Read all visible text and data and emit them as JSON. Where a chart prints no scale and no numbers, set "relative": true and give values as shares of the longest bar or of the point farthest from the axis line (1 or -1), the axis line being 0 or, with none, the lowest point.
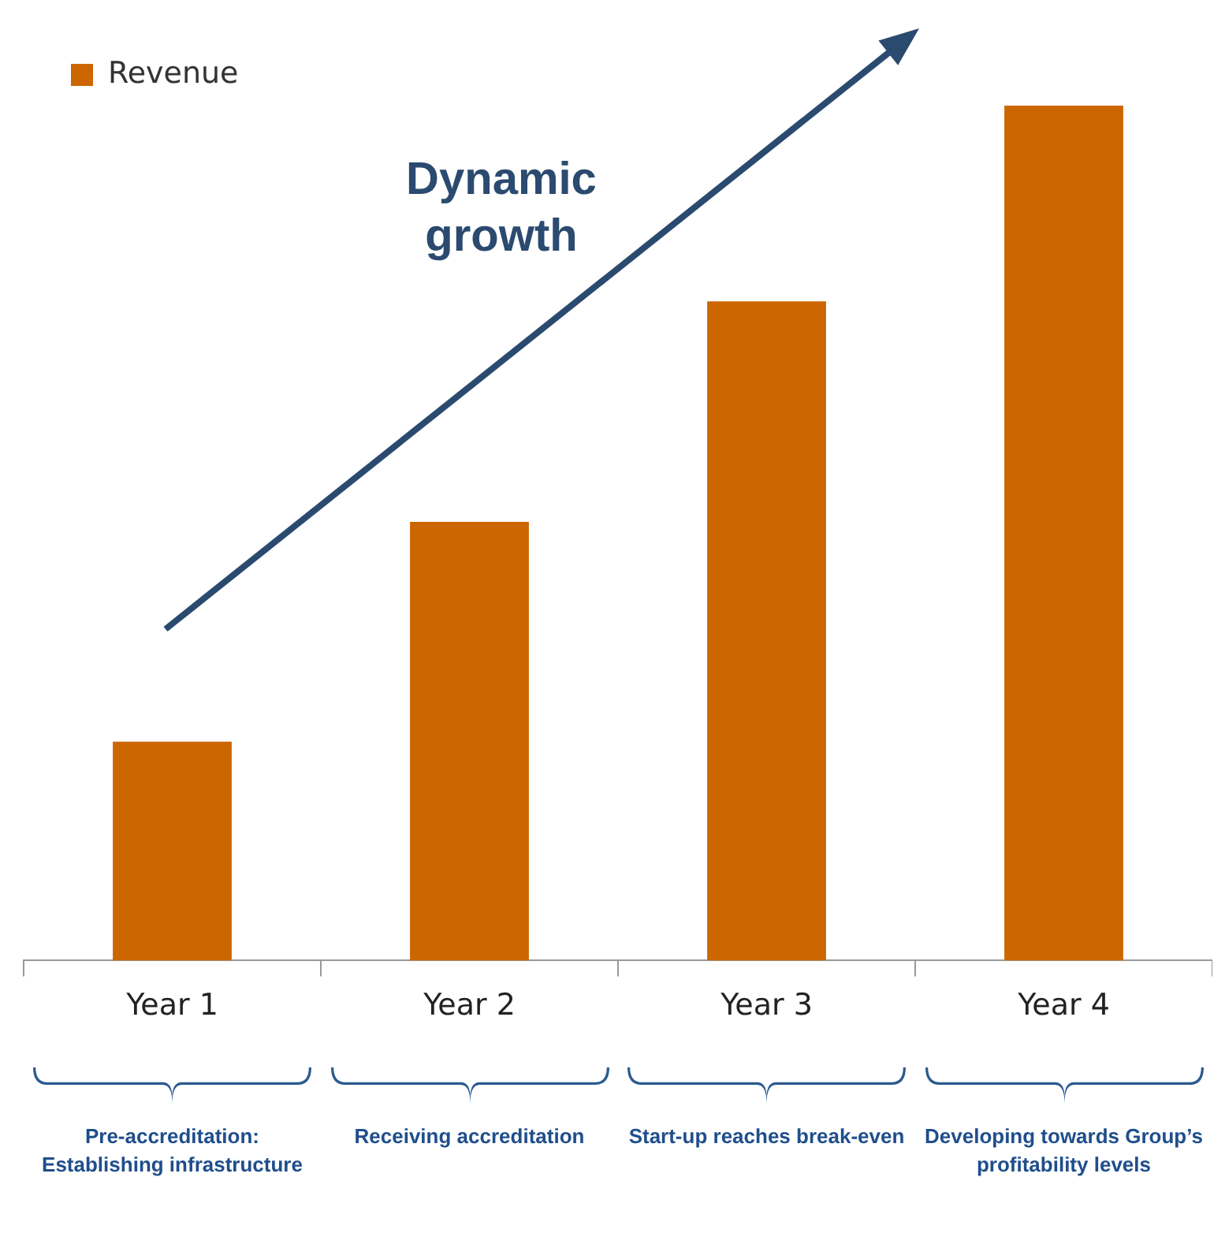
{
  "chart_data": {
    "type": "bar",
    "relative": true,
    "categories": [
      "Year 1",
      "Year 2",
      "Year 3",
      "Year 4"
    ],
    "series": [
      {
        "name": "Revenue",
        "color": "#cc6600",
        "values": [
          0.256,
          0.513,
          0.771,
          1
        ]
      }
    ],
    "legend": "top left",
    "annotations": [
      "Dynamic growth",
      "Pre-accreditation: Establishing infrastructure",
      "Receiving accreditation",
      "Start-up reaches break-even",
      "Developing towards Group’s profitability levels"
    ]
  }
}
